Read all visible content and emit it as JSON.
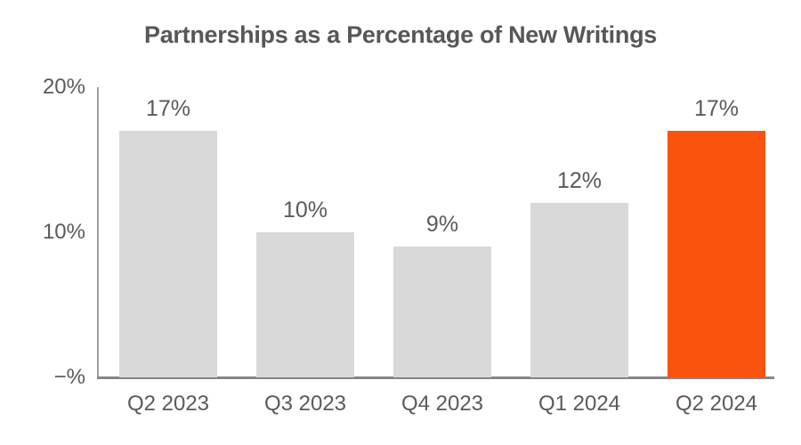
{
  "title": "Partnerships as a Percentage of New Writings",
  "chart_data": {
    "type": "bar",
    "title": "Partnerships as a Percentage of New Writings",
    "categories": [
      "Q2 2023",
      "Q3 2023",
      "Q4 2023",
      "Q1 2024",
      "Q2 2024"
    ],
    "values": [
      17,
      10,
      9,
      12,
      17
    ],
    "value_labels": [
      "17%",
      "10%",
      "9%",
      "12%",
      "17%"
    ],
    "xlabel": "",
    "ylabel": "",
    "ylim": [
      0,
      20
    ],
    "y_ticks": [
      {
        "value": 20,
        "label": "20%"
      },
      {
        "value": 10,
        "label": "10%"
      },
      {
        "value": 0,
        "label": "−%"
      }
    ],
    "grid": false,
    "legend": "none",
    "highlight_index": 4,
    "colors": {
      "bar": "#D9D9D9",
      "highlight": "#FA530D",
      "text": "#5A5A5A",
      "title": "#575757",
      "y_axis": "#A0A0A0",
      "x_axis": "#858585",
      "background": "#FFFFFF"
    }
  }
}
